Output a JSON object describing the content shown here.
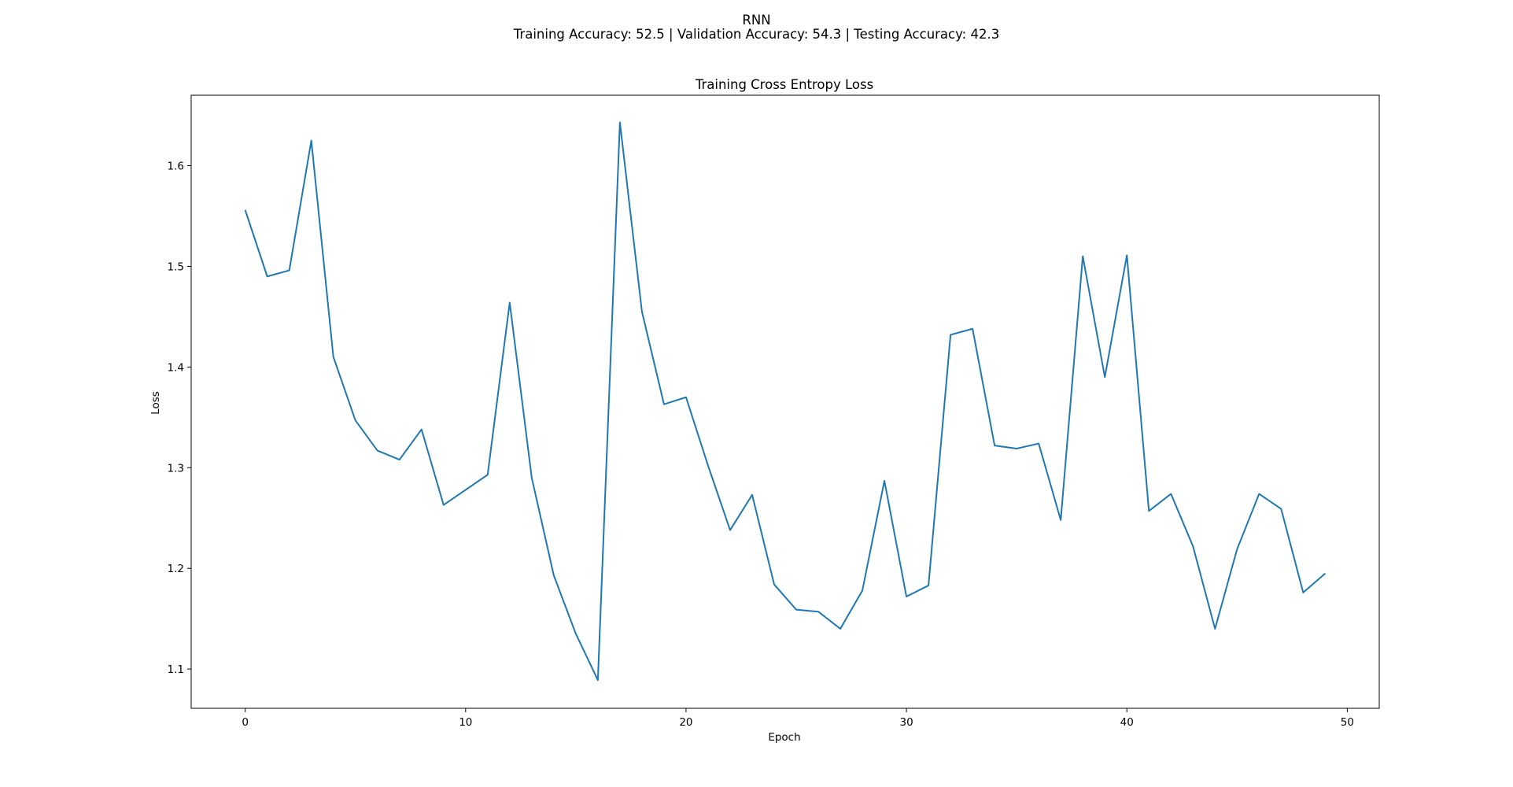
{
  "suptitle": {
    "line1": "RNN",
    "line2": "Training Accuracy: 52.5 | Validation Accuracy: 54.3 | Testing Accuracy: 42.3"
  },
  "chart_data": {
    "type": "line",
    "title": "Training Cross Entropy Loss",
    "xlabel": "Epoch",
    "ylabel": "Loss",
    "xlim": [
      -2.45,
      51.45
    ],
    "ylim": [
      1.061,
      1.67
    ],
    "xticks": [
      0,
      10,
      20,
      30,
      40,
      50
    ],
    "yticks": [
      1.1,
      1.2,
      1.3,
      1.4,
      1.5,
      1.6
    ],
    "grid": false,
    "color": "#1f77b4",
    "series": [
      {
        "x": [
          0,
          1,
          2,
          3,
          4,
          5,
          6,
          7,
          8,
          9,
          10,
          11,
          12,
          13,
          14,
          15,
          16,
          17,
          18,
          19,
          20,
          21,
          22,
          23,
          24,
          25,
          26,
          27,
          28,
          29,
          30,
          31,
          32,
          33,
          34,
          35,
          36,
          37,
          38,
          39,
          40,
          41,
          42,
          43,
          44,
          45,
          46,
          47,
          48,
          49
        ],
        "values": [
          1.556,
          1.49,
          1.496,
          1.625,
          1.41,
          1.347,
          1.317,
          1.308,
          1.338,
          1.263,
          1.278,
          1.293,
          1.464,
          1.29,
          1.193,
          1.135,
          1.089,
          1.643,
          1.455,
          1.363,
          1.37,
          1.302,
          1.238,
          1.273,
          1.184,
          1.159,
          1.157,
          1.14,
          1.178,
          1.287,
          1.172,
          1.183,
          1.432,
          1.438,
          1.322,
          1.319,
          1.324,
          1.248,
          1.51,
          1.39,
          1.511,
          1.257,
          1.274,
          1.222,
          1.14,
          1.219,
          1.274,
          1.259,
          1.176,
          1.195
        ]
      }
    ]
  }
}
